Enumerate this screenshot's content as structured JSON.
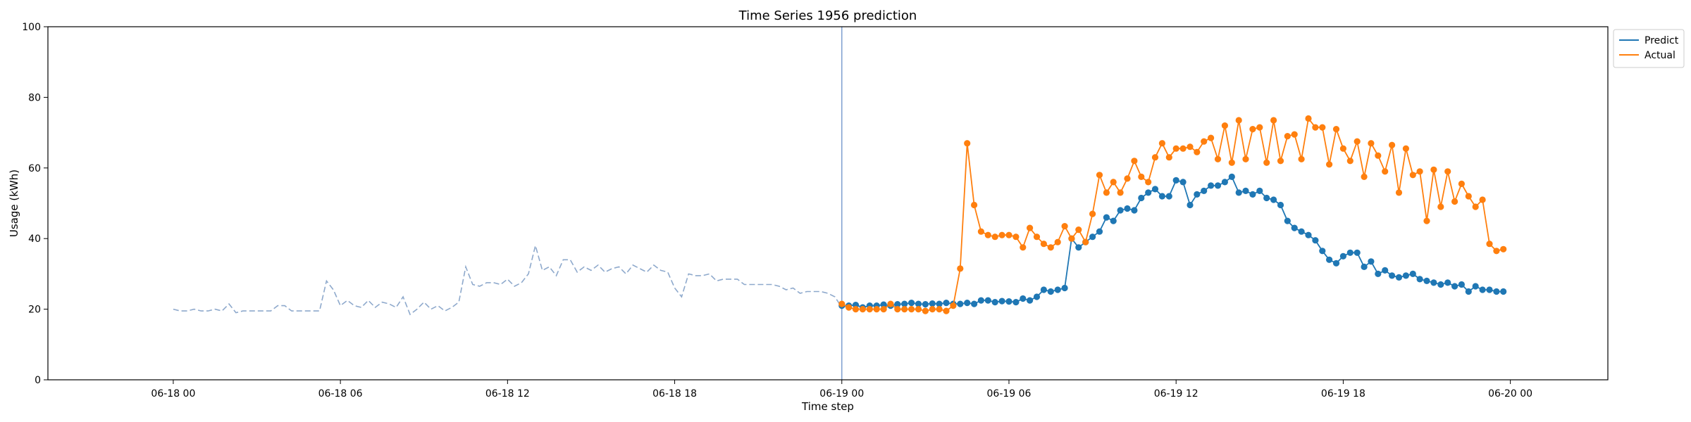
{
  "chart_data": {
    "type": "line",
    "title": "Time Series 1956 prediction",
    "xlabel": "Time step",
    "ylabel": "Usage (kWh)",
    "ylim": [
      0,
      100
    ],
    "yticks": [
      0,
      20,
      40,
      60,
      80,
      100
    ],
    "x_unit": "hours since 06-18 00",
    "xlim": [
      -4.5,
      51.5
    ],
    "xticks": [
      {
        "x": 0,
        "label": "06-18 00"
      },
      {
        "x": 6,
        "label": "06-18 06"
      },
      {
        "x": 12,
        "label": "06-18 12"
      },
      {
        "x": 18,
        "label": "06-18 18"
      },
      {
        "x": 24,
        "label": "06-19 00"
      },
      {
        "x": 30,
        "label": "06-19 06"
      },
      {
        "x": 36,
        "label": "06-19 12"
      },
      {
        "x": 42,
        "label": "06-19 18"
      },
      {
        "x": 48,
        "label": "06-20 00"
      }
    ],
    "step_hours": 0.25,
    "vline_x": 24,
    "legend": {
      "position": "upper-right-outside"
    },
    "series": [
      {
        "name": "Predict",
        "color": "#1f77b4",
        "style": "line-markers",
        "x_start": 24,
        "values": [
          21.0,
          21.0,
          21.2,
          20.5,
          21.0,
          21.0,
          21.3,
          21.0,
          21.4,
          21.5,
          21.8,
          21.5,
          21.4,
          21.6,
          21.5,
          21.8,
          21.5,
          21.5,
          21.8,
          21.5,
          22.5,
          22.5,
          22.0,
          22.3,
          22.2,
          22.0,
          23.0,
          22.5,
          23.5,
          25.5,
          25.0,
          25.5,
          26.0,
          40.0,
          37.5,
          39.0,
          40.5,
          42.0,
          46.0,
          45.0,
          48.0,
          48.5,
          48.0,
          51.5,
          53.0,
          54.0,
          52.0,
          52.0,
          56.5,
          56.0,
          49.5,
          52.5,
          53.5,
          55.0,
          55.0,
          56.0,
          57.5,
          53.0,
          53.5,
          52.5,
          53.5,
          51.5,
          51.0,
          49.5,
          45.0,
          43.0,
          42.0,
          41.0,
          39.5,
          36.5,
          34.0,
          33.0,
          35.0,
          36.0,
          36.0,
          32.0,
          33.5,
          30.0,
          31.0,
          29.5,
          29.0,
          29.5,
          30.0,
          28.5,
          28.0,
          27.5,
          27.0,
          27.5,
          26.5,
          27.0,
          25.0,
          26.5,
          25.5,
          25.5,
          25.0,
          25.0
        ]
      },
      {
        "name": "Actual",
        "color": "#ff7f0e",
        "style": "line-markers",
        "x_start": 24,
        "values": [
          21.5,
          20.5,
          20.0,
          20.0,
          20.0,
          20.0,
          20.0,
          21.5,
          20.0,
          20.0,
          20.0,
          20.0,
          19.5,
          20.0,
          20.0,
          19.5,
          21.0,
          31.5,
          67.0,
          49.5,
          42.0,
          41.0,
          40.5,
          41.0,
          41.0,
          40.5,
          37.5,
          43.0,
          40.5,
          38.5,
          37.5,
          39.0,
          43.5,
          40.0,
          42.5,
          39.0,
          47.0,
          58.0,
          53.0,
          56.0,
          53.0,
          57.0,
          62.0,
          57.5,
          56.0,
          63.0,
          67.0,
          63.0,
          65.5,
          65.5,
          66.0,
          64.5,
          67.5,
          68.5,
          62.5,
          72.0,
          61.5,
          73.5,
          62.5,
          71.0,
          71.5,
          61.5,
          73.5,
          62.0,
          69.0,
          69.5,
          62.5,
          74.0,
          71.5,
          71.5,
          61.0,
          71.0,
          65.5,
          62.0,
          67.5,
          57.5,
          67.0,
          63.5,
          59.0,
          66.5,
          53.0,
          65.5,
          58.0,
          59.0,
          45.0,
          59.5,
          49.0,
          59.0,
          50.5,
          55.5,
          52.0,
          49.0,
          51.0,
          38.5,
          36.5,
          37.0
        ]
      },
      {
        "name": "",
        "color": "#8ea9cc",
        "style": "dashed",
        "x_start": 0,
        "values": [
          20.0,
          19.5,
          19.5,
          20.0,
          19.5,
          19.5,
          20.0,
          19.5,
          21.5,
          19.0,
          19.5,
          19.5,
          19.5,
          19.5,
          19.5,
          21.0,
          21.0,
          19.5,
          19.5,
          19.5,
          19.5,
          19.5,
          28.0,
          25.5,
          21.0,
          22.5,
          21.0,
          20.5,
          22.5,
          20.5,
          22.0,
          21.5,
          20.5,
          23.5,
          18.5,
          20.0,
          22.0,
          20.0,
          21.0,
          19.5,
          20.5,
          22.0,
          32.0,
          27.0,
          26.5,
          27.5,
          27.5,
          27.0,
          28.5,
          26.5,
          27.5,
          30.0,
          38.0,
          31.0,
          32.0,
          29.5,
          34.0,
          34.0,
          30.5,
          32.0,
          31.0,
          32.5,
          30.5,
          31.5,
          32.0,
          30.0,
          32.5,
          31.5,
          30.5,
          32.5,
          31.0,
          30.5,
          26.0,
          23.5,
          30.0,
          29.5,
          29.5,
          30.0,
          28.0,
          28.5,
          28.5,
          28.5,
          27.0,
          27.0,
          27.0,
          27.0,
          27.0,
          26.5,
          25.5,
          26.0,
          24.5,
          25.0,
          25.0,
          25.0,
          24.5,
          23.5,
          20.5,
          21.0
        ]
      }
    ]
  }
}
